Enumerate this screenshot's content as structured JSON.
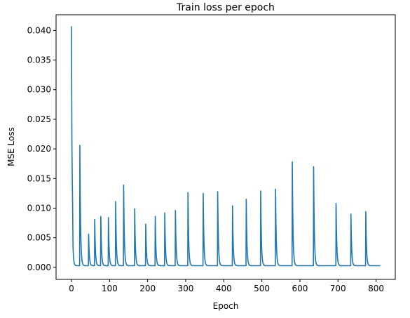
{
  "chart_data": {
    "type": "line",
    "title": "Train loss per epoch",
    "xlabel": "Epoch",
    "ylabel": "MSE Loss",
    "xlim": [
      -40.5,
      850.5
    ],
    "ylim": [
      -0.00203,
      0.04265
    ],
    "xticks": [
      0,
      100,
      200,
      300,
      400,
      500,
      600,
      700,
      800
    ],
    "yticks": [
      0.0,
      0.005,
      0.01,
      0.015,
      0.02,
      0.025,
      0.03,
      0.035,
      0.04
    ],
    "ytick_labels": [
      "0.000",
      "0.005",
      "0.010",
      "0.015",
      "0.020",
      "0.025",
      "0.030",
      "0.035",
      "0.040"
    ],
    "grid": false,
    "line_color": "#1f77b4",
    "series": [
      {
        "peaks": [
          {
            "epoch": 0,
            "loss": 0.0407
          },
          {
            "epoch": 22,
            "loss": 0.0206
          },
          {
            "epoch": 45,
            "loss": 0.0056
          },
          {
            "epoch": 61,
            "loss": 0.0081
          },
          {
            "epoch": 77,
            "loss": 0.0086
          },
          {
            "epoch": 97,
            "loss": 0.0084
          },
          {
            "epoch": 116,
            "loss": 0.0111
          },
          {
            "epoch": 137,
            "loss": 0.0139
          },
          {
            "epoch": 166,
            "loss": 0.0099
          },
          {
            "epoch": 195,
            "loss": 0.0073
          },
          {
            "epoch": 220,
            "loss": 0.0086
          },
          {
            "epoch": 245,
            "loss": 0.0092
          },
          {
            "epoch": 273,
            "loss": 0.0096
          },
          {
            "epoch": 306,
            "loss": 0.0126
          },
          {
            "epoch": 346,
            "loss": 0.0125
          },
          {
            "epoch": 384,
            "loss": 0.0128
          },
          {
            "epoch": 423,
            "loss": 0.0104
          },
          {
            "epoch": 459,
            "loss": 0.0115
          },
          {
            "epoch": 497,
            "loss": 0.0129
          },
          {
            "epoch": 536,
            "loss": 0.0132
          },
          {
            "epoch": 580,
            "loss": 0.0178
          },
          {
            "epoch": 636,
            "loss": 0.017
          },
          {
            "epoch": 695,
            "loss": 0.0108
          },
          {
            "epoch": 734,
            "loss": 0.009
          },
          {
            "epoch": 773,
            "loss": 0.0094
          }
        ],
        "end_epoch": 811
      }
    ]
  }
}
